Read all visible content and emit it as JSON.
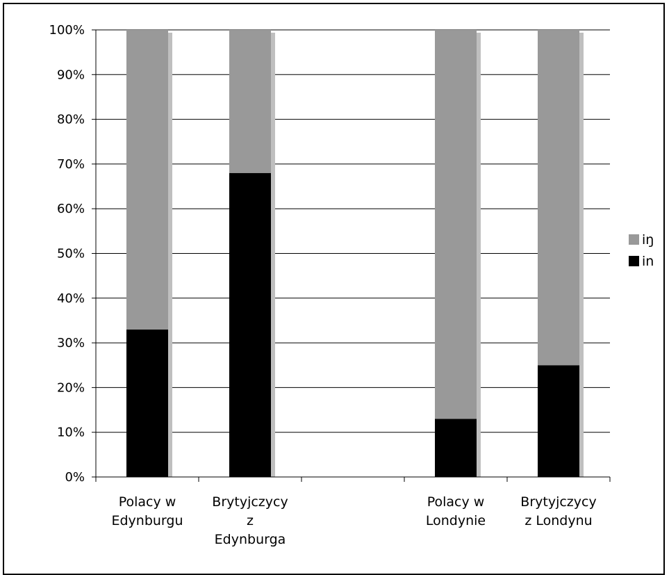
{
  "chart_data": {
    "type": "bar",
    "stacked": true,
    "percent_stacked": true,
    "categories": [
      [
        "Polacy w",
        "Edynburgu"
      ],
      [
        "Brytyjczycy",
        "z",
        "Edynburga"
      ],
      [],
      [
        "Polacy w",
        "Londynie"
      ],
      [
        "Brytyjczycy",
        "z Londynu"
      ]
    ],
    "series": [
      {
        "name": "in",
        "values": [
          33,
          68,
          null,
          13,
          25
        ]
      },
      {
        "name": "iŋ",
        "values": [
          67,
          32,
          null,
          87,
          75
        ]
      }
    ],
    "colors": {
      "in": "#000000",
      "iŋ": "#999999",
      "shadow": "#bfbfbf",
      "grid": "#000000"
    },
    "y_ticks": [
      "0%",
      "10%",
      "20%",
      "30%",
      "40%",
      "50%",
      "60%",
      "70%",
      "80%",
      "90%",
      "100%"
    ],
    "ylim": [
      0,
      100
    ],
    "grid": true,
    "legend": {
      "placement": "right",
      "order": [
        "iŋ",
        "in"
      ]
    }
  }
}
